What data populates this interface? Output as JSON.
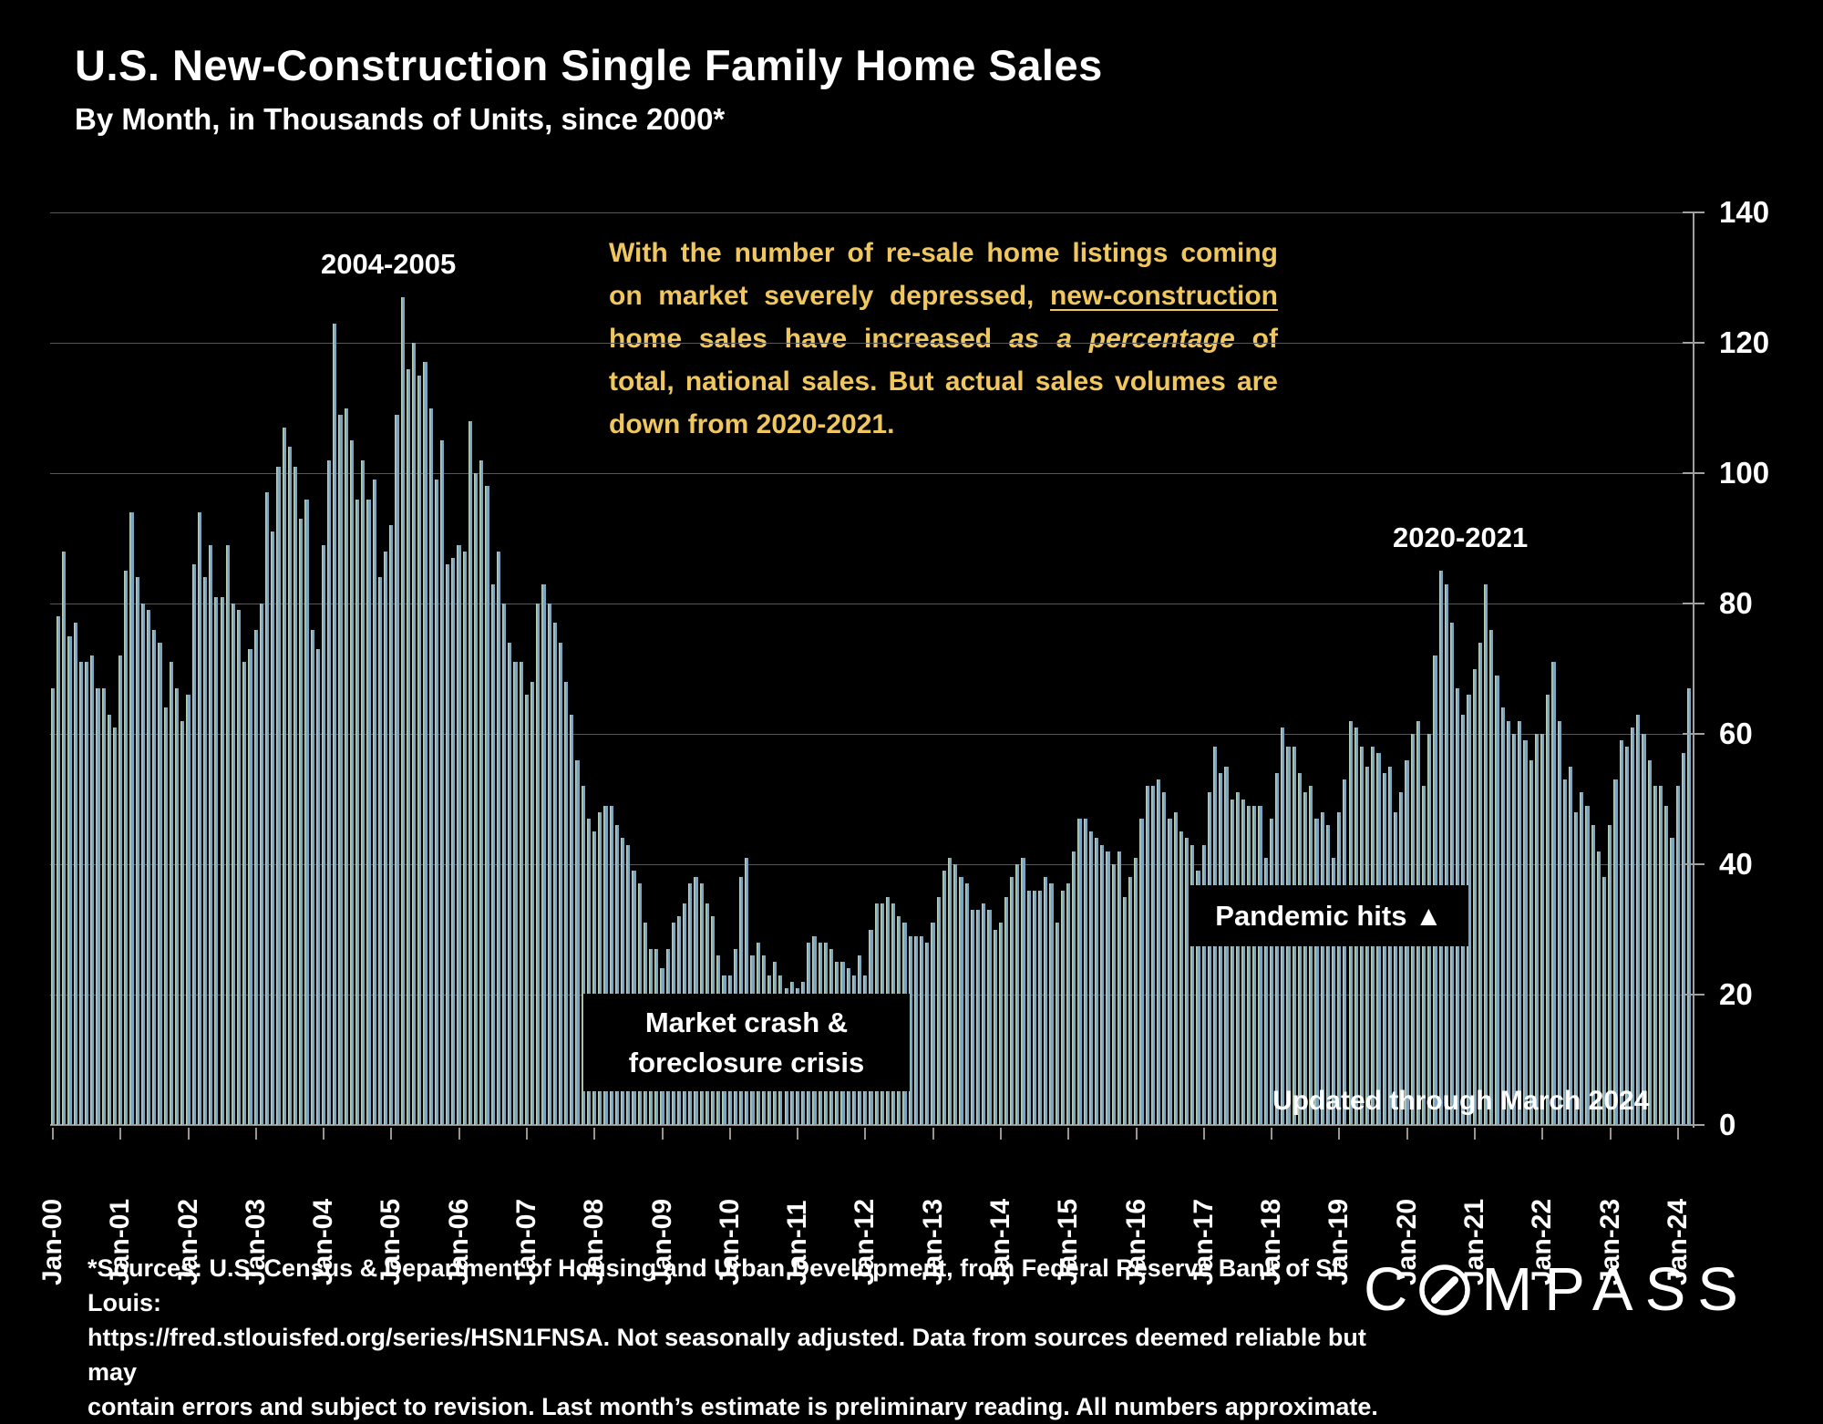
{
  "header": {
    "title": "U.S. New-Construction Single Family Home Sales",
    "subtitle": "By Month, in Thousands of Units, since 2000*"
  },
  "callout": {
    "seg1": "With the number of re-sale home listings coming on market severely depressed, ",
    "seg2_underline": "new-construction",
    "seg3": " home sales have increased ",
    "seg4_italic": "as a percentage",
    "seg5": " of total, national sales. But actual sales volumes are down from 2020-2021."
  },
  "annotations": {
    "peak_2004_2005": "2004-2005",
    "peak_2020_2021": "2020-2021",
    "market_crash_line1": "Market crash &",
    "market_crash_line2": "foreclosure crisis",
    "pandemic_hits": "Pandemic hits ▲",
    "updated_note": "Updated through March 2024"
  },
  "footer": {
    "line1": "*Sources: U.S. Census & Department of Housing and Urban Development, from Federal Reserve Bank of St. Louis:",
    "line2": "https://fred.stlouisfed.org/series/HSN1FNSA. Not seasonally adjusted. Data from sources deemed reliable but may",
    "line3": "contain errors and subject to revision. Last month’s estimate is preliminary reading. All numbers approximate.",
    "brand_c": "C",
    "brand_rest": "MPASS"
  },
  "y_axis": {
    "ticks": [
      0,
      20,
      40,
      60,
      80,
      100,
      120,
      140
    ]
  },
  "x_axis": {
    "labels": [
      "Jan-00",
      "Jan-01",
      "Jan-02",
      "Jan-03",
      "Jan-04",
      "Jan-05",
      "Jan-06",
      "Jan-07",
      "Jan-08",
      "Jan-09",
      "Jan-10",
      "Jan-11",
      "Jan-12",
      "Jan-13",
      "Jan-14",
      "Jan-15",
      "Jan-16",
      "Jan-17",
      "Jan-18",
      "Jan-19",
      "Jan-20",
      "Jan-21",
      "Jan-22",
      "Jan-23",
      "Jan-24"
    ]
  },
  "colors": {
    "background": "#000000",
    "bar_blue": "#7AA5C2",
    "bar_sage": "#B7CCB1",
    "gridline": "#565656",
    "axis": "#9A938E",
    "callout_yellow": "#EFC75E"
  },
  "chart_data": {
    "type": "bar",
    "title": "U.S. New-Construction Single Family Home Sales",
    "ylabel": "Thousands of units",
    "unit": "thousands of homes sold per month, not seasonally adjusted",
    "start_month": "Jan-2000",
    "end_month": "Mar-2024",
    "ylim": [
      0,
      140
    ],
    "gridlines_every": 20,
    "legend": "none",
    "values": [
      67,
      78,
      88,
      75,
      77,
      71,
      71,
      72,
      67,
      67,
      63,
      61,
      72,
      85,
      94,
      84,
      80,
      79,
      76,
      74,
      64,
      71,
      67,
      62,
      66,
      86,
      94,
      84,
      89,
      81,
      81,
      89,
      80,
      79,
      71,
      73,
      76,
      80,
      97,
      91,
      101,
      107,
      104,
      101,
      93,
      96,
      76,
      73,
      89,
      102,
      123,
      109,
      110,
      105,
      96,
      102,
      96,
      99,
      84,
      88,
      92,
      109,
      127,
      116,
      120,
      115,
      117,
      110,
      99,
      105,
      86,
      87,
      89,
      88,
      108,
      100,
      102,
      98,
      83,
      88,
      80,
      74,
      71,
      71,
      66,
      68,
      80,
      83,
      80,
      77,
      74,
      68,
      63,
      56,
      52,
      47,
      45,
      48,
      49,
      49,
      46,
      44,
      43,
      39,
      37,
      31,
      27,
      27,
      24,
      27,
      31,
      32,
      34,
      37,
      38,
      37,
      34,
      32,
      26,
      23,
      23,
      27,
      38,
      41,
      26,
      28,
      26,
      23,
      25,
      23,
      21,
      22,
      21,
      22,
      28,
      29,
      28,
      28,
      27,
      25,
      25,
      24,
      23,
      26,
      23,
      30,
      34,
      34,
      35,
      34,
      32,
      31,
      29,
      29,
      29,
      28,
      31,
      35,
      39,
      41,
      40,
      38,
      37,
      33,
      33,
      34,
      33,
      30,
      31,
      35,
      38,
      40,
      41,
      36,
      36,
      36,
      38,
      37,
      31,
      36,
      37,
      42,
      47,
      47,
      45,
      44,
      43,
      42,
      40,
      42,
      35,
      38,
      41,
      47,
      52,
      52,
      53,
      51,
      47,
      48,
      45,
      44,
      43,
      39,
      43,
      51,
      58,
      54,
      55,
      50,
      51,
      50,
      49,
      49,
      49,
      41,
      47,
      54,
      61,
      58,
      58,
      54,
      51,
      52,
      47,
      48,
      46,
      41,
      48,
      53,
      62,
      61,
      58,
      55,
      58,
      57,
      54,
      55,
      48,
      51,
      56,
      60,
      62,
      52,
      60,
      72,
      85,
      83,
      77,
      67,
      63,
      66,
      70,
      74,
      83,
      76,
      69,
      64,
      62,
      60,
      62,
      59,
      56,
      60,
      60,
      66,
      71,
      62,
      53,
      55,
      48,
      51,
      49,
      46,
      42,
      38,
      46,
      53,
      59,
      58,
      61,
      63,
      60,
      56,
      52,
      52,
      49,
      44,
      52,
      57,
      67
    ]
  }
}
